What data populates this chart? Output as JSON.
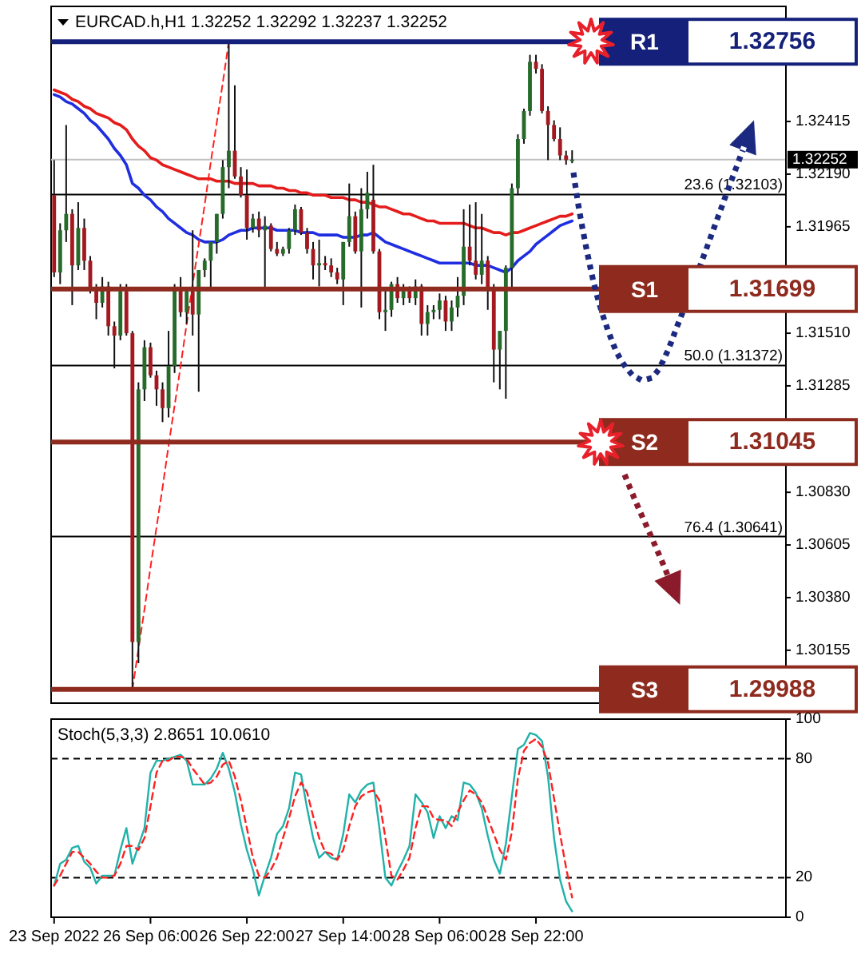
{
  "chart_data": [
    {
      "type": "candlestick",
      "title": "EURCAD.h,H1 1.32252 1.32292 1.32237 1.32252",
      "categories": [
        null,
        null,
        null,
        null,
        null,
        null,
        null,
        null,
        null,
        null,
        null,
        null,
        null,
        null,
        null,
        null,
        null,
        null,
        null,
        null,
        null,
        null,
        null,
        null,
        null,
        null,
        null,
        null,
        null,
        null,
        null,
        null,
        null,
        null,
        null,
        null,
        null,
        null,
        null,
        null,
        null,
        null,
        null,
        null,
        null,
        null,
        null,
        null,
        null,
        null,
        null,
        null,
        null,
        null,
        null,
        null,
        null,
        null,
        null,
        null,
        null,
        null,
        null,
        null,
        null,
        null,
        null,
        null,
        null,
        null,
        null,
        null,
        null,
        null,
        null,
        null,
        null,
        null,
        null,
        null,
        null,
        null,
        null,
        null,
        null,
        null,
        null,
        null,
        null,
        null,
        null,
        null,
        null,
        null,
        null,
        null,
        null,
        null,
        null,
        null,
        null,
        null,
        null,
        null,
        null,
        null,
        null,
        null,
        null,
        null,
        null,
        null,
        null,
        null,
        null,
        null,
        null,
        null,
        null,
        null,
        null,
        null
      ],
      "ohlc": [
        [
          1.321,
          1.3225,
          1.3175,
          1.3177
        ],
        [
          1.3177,
          1.3198,
          1.3172,
          1.3195
        ],
        [
          1.3195,
          1.324,
          1.319,
          1.3202
        ],
        [
          1.3202,
          1.3204,
          1.3163,
          1.318
        ],
        [
          1.318,
          1.3207,
          1.3178,
          1.3196
        ],
        [
          1.3196,
          1.32,
          1.3178,
          1.3182
        ],
        [
          1.3182,
          1.3184,
          1.3168,
          1.317
        ],
        [
          1.317,
          1.3172,
          1.3157,
          1.3164
        ],
        [
          1.3164,
          1.3175,
          1.3162,
          1.3171
        ],
        [
          1.3171,
          1.3173,
          1.315,
          1.3154
        ],
        [
          1.3154,
          1.3156,
          1.3136,
          1.315
        ],
        [
          1.315,
          1.3172,
          1.3148,
          1.3169
        ],
        [
          1.3169,
          1.3172,
          1.315,
          1.3151
        ],
        [
          1.3151,
          1.3152,
          1.29988,
          1.3019
        ],
        [
          1.3019,
          1.313,
          1.301,
          1.3127
        ],
        [
          1.3127,
          1.3148,
          1.3122,
          1.3145
        ],
        [
          1.3145,
          1.3147,
          1.3132,
          1.3133
        ],
        [
          1.3133,
          1.3135,
          1.312,
          1.3127
        ],
        [
          1.3127,
          1.313,
          1.3113,
          1.3119
        ],
        [
          1.3119,
          1.3152,
          1.3115,
          1.3137
        ],
        [
          1.3137,
          1.3172,
          1.3134,
          1.317
        ],
        [
          1.317,
          1.3175,
          1.3158,
          1.316
        ],
        [
          1.316,
          1.317,
          1.3155,
          1.3169
        ],
        [
          1.3169,
          1.3195,
          1.315,
          1.3159
        ],
        [
          1.3159,
          1.3178,
          1.3126,
          1.3178
        ],
        [
          1.3178,
          1.3183,
          1.3175,
          1.3182
        ],
        [
          1.3182,
          1.319,
          1.317,
          1.319
        ],
        [
          1.319,
          1.3202,
          1.3185,
          1.3202
        ],
        [
          1.3202,
          1.3225,
          1.32,
          1.3222
        ],
        [
          1.3222,
          1.32756,
          1.3213,
          1.3229
        ],
        [
          1.3229,
          1.3257,
          1.3217,
          1.3218
        ],
        [
          1.3218,
          1.3222,
          1.3209,
          1.321
        ],
        [
          1.321,
          1.3221,
          1.3191,
          1.3196
        ],
        [
          1.3196,
          1.3202,
          1.3194,
          1.32
        ],
        [
          1.32,
          1.3203,
          1.3192,
          1.3195
        ],
        [
          1.3195,
          1.3201,
          1.317,
          1.3197
        ],
        [
          1.3197,
          1.3198,
          1.3186,
          1.3187
        ],
        [
          1.3187,
          1.319,
          1.3184,
          1.3185
        ],
        [
          1.3185,
          1.3188,
          1.3184,
          1.3187
        ],
        [
          1.3187,
          1.3196,
          1.3185,
          1.3195
        ],
        [
          1.3195,
          1.3206,
          1.3193,
          1.3204
        ],
        [
          1.3204,
          1.3205,
          1.3193,
          1.3194
        ],
        [
          1.3194,
          1.3196,
          1.3185,
          1.3187
        ],
        [
          1.3187,
          1.319,
          1.3174,
          1.318
        ],
        [
          1.318,
          1.3191,
          1.3171,
          1.3181
        ],
        [
          1.3181,
          1.3184,
          1.3178,
          1.318
        ],
        [
          1.318,
          1.3183,
          1.3175,
          1.3177
        ],
        [
          1.3177,
          1.3179,
          1.3172,
          1.3174
        ],
        [
          1.3174,
          1.319,
          1.3163,
          1.319
        ],
        [
          1.319,
          1.3215,
          1.3188,
          1.3201
        ],
        [
          1.3201,
          1.3203,
          1.3185,
          1.3186
        ],
        [
          1.3186,
          1.3213,
          1.3162,
          1.3204
        ],
        [
          1.3204,
          1.322,
          1.32,
          1.3211
        ],
        [
          1.3208,
          1.3223,
          1.3185,
          1.3186
        ],
        [
          1.3186,
          1.3187,
          1.3157,
          1.316
        ],
        [
          1.316,
          1.317,
          1.3152,
          1.3161
        ],
        [
          1.3161,
          1.3173,
          1.3158,
          1.3172
        ],
        [
          1.3172,
          1.3175,
          1.3164,
          1.3166
        ],
        [
          1.3166,
          1.3172,
          1.3163,
          1.3169
        ],
        [
          1.3169,
          1.3171,
          1.3164,
          1.3166
        ],
        [
          1.3166,
          1.3174,
          1.3163,
          1.3171
        ],
        [
          1.3171,
          1.3172,
          1.315,
          1.3155
        ],
        [
          1.3155,
          1.3163,
          1.315,
          1.316
        ],
        [
          1.316,
          1.3163,
          1.3157,
          1.3161
        ],
        [
          1.3161,
          1.3168,
          1.3157,
          1.3165
        ],
        [
          1.3165,
          1.3167,
          1.3152,
          1.3156
        ],
        [
          1.3156,
          1.3165,
          1.3152,
          1.3162
        ],
        [
          1.3162,
          1.3175,
          1.3158,
          1.3167
        ],
        [
          1.3167,
          1.3204,
          1.3163,
          1.3188
        ],
        [
          1.3188,
          1.3206,
          1.318,
          1.3182
        ],
        [
          1.3182,
          1.3207,
          1.3174,
          1.3176
        ],
        [
          1.3176,
          1.3202,
          1.3172,
          1.3182
        ],
        [
          1.3182,
          1.3184,
          1.3161,
          1.317
        ],
        [
          1.317,
          1.3172,
          1.313,
          1.3144
        ],
        [
          1.3144,
          1.3152,
          1.3127,
          1.3152
        ],
        [
          1.3152,
          1.318,
          1.3123,
          1.3179
        ],
        [
          1.3179,
          1.3215,
          1.317,
          1.3213
        ],
        [
          1.3213,
          1.3236,
          1.321,
          1.3234
        ],
        [
          1.3234,
          1.3247,
          1.3232,
          1.3246
        ],
        [
          1.3246,
          1.327,
          1.3244,
          1.3267
        ],
        [
          1.3267,
          1.327,
          1.3262,
          1.3264
        ],
        [
          1.3264,
          1.3266,
          1.3245,
          1.3246
        ],
        [
          1.3246,
          1.3248,
          1.3225,
          1.324
        ],
        [
          1.324,
          1.3242,
          1.3233,
          1.3234
        ],
        [
          1.3234,
          1.3239,
          1.3225,
          1.3227
        ],
        [
          1.3227,
          1.3229,
          1.3223,
          1.3225
        ],
        [
          1.32252,
          1.32292,
          1.32237,
          1.32252
        ],
        null,
        null,
        null,
        null,
        null,
        null,
        null,
        null,
        null,
        null,
        null,
        null,
        null,
        null,
        null,
        null,
        null,
        null,
        null,
        null,
        null,
        null,
        null,
        null,
        null,
        null,
        null,
        null,
        null,
        null,
        null,
        null,
        null,
        null,
        null
      ],
      "colors": [
        "#a3191f",
        "#266b2a",
        "#266b2a",
        "#a3191f",
        "#266b2a",
        "#a3191f",
        "#a3191f",
        "#a3191f",
        "#266b2a",
        "#a3191f",
        "#a3191f",
        "#266b2a",
        "#a3191f",
        "#a3191f",
        "#266b2a",
        "#266b2a",
        "#a3191f",
        "#a3191f",
        "#a3191f",
        "#266b2a",
        "#266b2a",
        "#a3191f",
        "#266b2a",
        "#a3191f",
        "#266b2a",
        "#266b2a",
        "#266b2a",
        "#266b2a",
        "#266b2a",
        "#266b2a",
        "#a3191f",
        "#a3191f",
        "#a3191f",
        "#266b2a",
        "#a3191f",
        "#266b2a",
        "#a3191f",
        "#a3191f",
        "#266b2a",
        "#266b2a",
        "#266b2a",
        "#a3191f",
        "#a3191f",
        "#a3191f",
        "#266b2a",
        "#a3191f",
        "#a3191f",
        "#a3191f",
        "#266b2a",
        "#266b2a",
        "#a3191f",
        "#266b2a",
        "#266b2a",
        "#a3191f",
        "#a3191f",
        "#266b2a",
        "#266b2a",
        "#a3191f",
        "#266b2a",
        "#a3191f",
        "#266b2a",
        "#a3191f",
        "#266b2a",
        "#266b2a",
        "#266b2a",
        "#a3191f",
        "#266b2a",
        "#266b2a",
        "#266b2a",
        "#a3191f",
        "#a3191f",
        "#266b2a",
        "#a3191f",
        "#a3191f",
        "#266b2a",
        "#266b2a",
        "#266b2a",
        "#266b2a",
        "#266b2a",
        "#266b2a",
        "#a3191f",
        "#a3191f",
        "#a3191f",
        "#a3191f",
        "#a3191f",
        "#a3191f",
        "#266b2a",
        null,
        null,
        null,
        null,
        null,
        null,
        null,
        null,
        null,
        null,
        null,
        null,
        null,
        null,
        null,
        null,
        null,
        null,
        null,
        null,
        null,
        null,
        null,
        null,
        null,
        null,
        null,
        null,
        null,
        null,
        null,
        null,
        null,
        null,
        null
      ],
      "series": [
        {
          "type": "line",
          "color": "#e51c1c",
          "values": [
            1.3255,
            1.3254,
            1.3253,
            1.3251,
            1.325,
            1.3248,
            1.3247,
            1.3245,
            1.3244,
            1.3243,
            1.3241,
            1.324,
            1.3238,
            1.3234,
            1.3231,
            1.3229,
            1.3226,
            1.3225,
            1.3223,
            1.3222,
            1.3221,
            1.322,
            1.3219,
            1.3218,
            1.3217,
            1.3217,
            1.3217,
            1.3216,
            1.3216,
            1.3216,
            1.3215,
            1.3215,
            1.3215,
            1.3215,
            1.3214,
            1.3214,
            1.3214,
            1.3213,
            1.3213,
            1.3212,
            1.3212,
            1.3211,
            1.3211,
            1.321,
            1.321,
            1.321,
            1.3209,
            1.3209,
            1.3209,
            1.3208,
            1.3208,
            1.3207,
            1.3207,
            1.3206,
            1.3205,
            1.3205,
            1.3204,
            1.3203,
            1.3202,
            1.3202,
            1.3201,
            1.32,
            1.3199,
            1.3199,
            1.3198,
            1.3198,
            1.3198,
            1.3198,
            1.3198,
            1.3197,
            1.3196,
            1.3196,
            1.3195,
            1.3194,
            1.3194,
            1.3193,
            1.3194,
            1.3194,
            1.3195,
            1.3196,
            1.3197,
            1.3198,
            1.3199,
            1.32,
            1.3201,
            1.3201,
            1.3202,
            null,
            null,
            null,
            null,
            null,
            null,
            null,
            null,
            null,
            null,
            null,
            null,
            null,
            null,
            null,
            null,
            null,
            null,
            null,
            null,
            null,
            null,
            null,
            null,
            null,
            null,
            null,
            null,
            null,
            null,
            null,
            null,
            null,
            null,
            null
          ]
        },
        {
          "type": "line",
          "color": "#1f2ee0",
          "values": [
            1.3253,
            1.3252,
            1.325,
            1.3249,
            1.3247,
            1.3245,
            1.3242,
            1.324,
            1.3237,
            1.3234,
            1.323,
            1.3227,
            1.3223,
            1.3215,
            1.3213,
            1.321,
            1.3208,
            1.3205,
            1.3203,
            1.32,
            1.3198,
            1.3196,
            1.3194,
            1.3193,
            1.3191,
            1.319,
            1.319,
            1.319,
            1.3191,
            1.3193,
            1.3194,
            1.3195,
            1.3195,
            1.3196,
            1.3196,
            1.3196,
            1.3196,
            1.3195,
            1.3195,
            1.3195,
            1.3195,
            1.3194,
            1.3194,
            1.3194,
            1.3193,
            1.3193,
            1.3193,
            1.3193,
            1.3192,
            1.3192,
            1.3192,
            1.3193,
            1.3193,
            1.3194,
            1.3192,
            1.319,
            1.3189,
            1.3188,
            1.3187,
            1.3186,
            1.3185,
            1.3184,
            1.3183,
            1.3182,
            1.3181,
            1.3181,
            1.3181,
            1.3181,
            1.3181,
            1.3181,
            1.318,
            1.318,
            1.318,
            1.3179,
            1.3178,
            1.3177,
            1.3179,
            1.3182,
            1.3184,
            1.3186,
            1.3189,
            1.3191,
            1.3193,
            1.3195,
            1.3197,
            1.3198,
            1.3199,
            null,
            null,
            null,
            null,
            null,
            null,
            null,
            null,
            null,
            null,
            null,
            null,
            null,
            null,
            null,
            null,
            null,
            null,
            null,
            null,
            null,
            null,
            null,
            null,
            null,
            null,
            null,
            null,
            null,
            null,
            null,
            null,
            null,
            null,
            null
          ]
        },
        {
          "type": "line",
          "color": "#ff2020",
          "line_style": "dashed",
          "values": [
            null,
            null,
            null,
            null,
            null,
            null,
            null,
            null,
            null,
            null,
            null,
            null,
            null,
            1.29988,
            1.3016,
            1.3033,
            1.3051,
            1.3068,
            1.3085,
            1.3103,
            1.312,
            1.3137,
            1.3155,
            1.3172,
            1.3189,
            1.3206,
            1.3224,
            1.3241,
            1.3258,
            1.32756,
            null,
            null,
            null,
            null,
            null,
            null,
            null,
            null,
            null,
            null,
            null,
            null,
            null,
            null,
            null,
            null,
            null,
            null,
            null,
            null,
            null,
            null,
            null,
            null,
            null,
            null,
            null,
            null,
            null,
            null,
            null,
            null,
            null,
            null,
            null,
            null,
            null,
            null,
            null,
            null,
            null,
            null,
            null,
            null,
            null,
            null,
            null,
            null,
            null,
            null,
            null,
            null,
            null,
            null,
            null,
            null,
            null,
            null,
            null,
            null,
            null,
            null,
            null,
            null,
            null,
            null,
            null,
            null,
            null,
            null,
            null,
            null,
            null,
            null,
            null,
            null,
            null,
            null,
            null,
            null,
            null,
            null,
            null,
            null,
            null,
            null,
            null,
            null,
            null,
            null,
            null,
            null
          ]
        }
      ],
      "ylim": [
        1.29929,
        1.32907
      ],
      "yticks": [
        1.32415,
        1.32252,
        {
          "value": 1.3219,
          "label": "1.32190"
        },
        1.31965,
        {
          "value": 1.3151,
          "label": "1.31510"
        },
        1.31285,
        {
          "value": 1.3083,
          "label": "1.30830"
        },
        1.30605,
        {
          "value": 1.3038,
          "label": "1.30380"
        },
        1.30155
      ],
      "tick_labels": "y",
      "ref_lines": [
        {
          "axis": "y",
          "value": 1.32756,
          "label": "R1",
          "color": "#14207a"
        },
        {
          "axis": "y",
          "value": 1.32252,
          "color": "#c0c0c0"
        },
        {
          "axis": "y",
          "value": 1.32103,
          "color": "#000000"
        },
        {
          "axis": "y",
          "value": 1.31699,
          "label": "S1",
          "color": "#8e2a1e"
        },
        {
          "axis": "y",
          "value": 1.31372,
          "color": "#000000"
        },
        {
          "axis": "y",
          "value": 1.31045,
          "label": "S2",
          "color": "#8e2a1e"
        },
        {
          "axis": "y",
          "value": 1.30641,
          "color": "#000000"
        },
        {
          "axis": "y",
          "value": 1.29988,
          "label": "S3",
          "color": "#8e2a1e"
        }
      ],
      "annotations": [
        "1.32756",
        "1.31699",
        "1.31045",
        "1.29988",
        {
          "text": "23.6 (1.32103)",
          "y": 1.32103
        },
        {
          "text": "50.0 (1.31372)",
          "y": 1.31372
        },
        {
          "text": "76.4 (1.30641)",
          "y": 1.30641
        }
      ]
    },
    {
      "type": "line",
      "title": "Stoch(5,3,3) 2.8651 10.0610",
      "categories": [
        "23 Sep 2022",
        null,
        null,
        null,
        null,
        null,
        null,
        null,
        null,
        null,
        null,
        null,
        null,
        null,
        null,
        null,
        "26 Sep 06:00",
        null,
        null,
        null,
        null,
        null,
        null,
        null,
        null,
        null,
        null,
        null,
        null,
        null,
        null,
        null,
        "26 Sep 22:00",
        null,
        null,
        null,
        null,
        null,
        null,
        null,
        null,
        null,
        null,
        null,
        null,
        null,
        null,
        null,
        "27 Sep 14:00",
        null,
        null,
        null,
        null,
        null,
        null,
        null,
        null,
        null,
        null,
        null,
        null,
        null,
        null,
        null,
        "28 Sep 06:00",
        null,
        null,
        null,
        null,
        null,
        null,
        null,
        null,
        null,
        null,
        null,
        null,
        null,
        null,
        null,
        "28 Sep 22:00",
        null,
        null,
        null,
        null,
        null,
        null,
        null,
        null,
        null,
        null,
        null,
        null,
        null,
        null,
        null,
        null,
        null,
        null,
        null,
        null,
        null,
        null,
        null,
        null,
        null,
        null,
        null,
        null,
        null,
        null,
        null,
        null,
        null,
        null,
        null,
        null,
        null,
        null,
        null,
        null,
        null
      ],
      "series": [
        {
          "color": "#20b2aa",
          "values": [
            16,
            27,
            29,
            35,
            36,
            28,
            25,
            17,
            21,
            21,
            21,
            34,
            45,
            27,
            36,
            45,
            73,
            79,
            79,
            80,
            81,
            82,
            79,
            67,
            67,
            67,
            70,
            75,
            83,
            75,
            63,
            47,
            34,
            24,
            11,
            21,
            30,
            42,
            46,
            55,
            73,
            72,
            55,
            40,
            30,
            33,
            30,
            29,
            42,
            62,
            58,
            64,
            67,
            68,
            45,
            20,
            16,
            23,
            29,
            36,
            62,
            58,
            53,
            40,
            51,
            45,
            51,
            49,
            68,
            67,
            63,
            55,
            41,
            29,
            22,
            37,
            61,
            85,
            87,
            93,
            92,
            89,
            71,
            40,
            19,
            8,
            3,
            null,
            null,
            null,
            null,
            null,
            null,
            null,
            null,
            null,
            null,
            null,
            null,
            null,
            null,
            null,
            null,
            null,
            null,
            null,
            null,
            null,
            null,
            null,
            null,
            null,
            null,
            null,
            null,
            null,
            null,
            null,
            null,
            null,
            null,
            null
          ]
        },
        {
          "color": "#ff2020",
          "line_style": "dashed",
          "values": [
            16,
            21,
            27,
            33,
            33,
            30,
            27,
            23,
            20,
            20,
            21,
            27,
            36,
            36,
            34,
            40,
            56,
            73,
            79,
            79,
            81,
            81,
            80,
            75,
            71,
            67,
            68,
            71,
            77,
            79,
            71,
            59,
            45,
            30,
            21,
            20,
            24,
            30,
            40,
            50,
            61,
            68,
            63,
            51,
            40,
            33,
            32,
            29,
            34,
            46,
            56,
            61,
            63,
            64,
            59,
            40,
            21,
            19,
            24,
            30,
            45,
            56,
            56,
            50,
            49,
            49,
            46,
            53,
            59,
            64,
            62,
            58,
            50,
            42,
            34,
            29,
            43,
            70,
            84,
            88,
            90,
            86,
            78,
            60,
            42,
            25,
            10,
            null,
            null,
            null,
            null,
            null,
            null,
            null,
            null,
            null,
            null,
            null,
            null,
            null,
            null,
            null,
            null,
            null,
            null,
            null,
            null,
            null,
            null,
            null,
            null,
            null,
            null,
            null,
            null,
            null,
            null,
            null,
            null,
            null,
            null,
            null
          ]
        }
      ],
      "ylim": [
        0,
        100
      ],
      "yticks": [
        0,
        20,
        80,
        100
      ],
      "ref_lines": [
        {
          "axis": "y",
          "value": 80,
          "color": "#000000",
          "line_style": "dashed"
        },
        {
          "axis": "y",
          "value": 20,
          "color": "#000000",
          "line_style": "dashed"
        }
      ]
    }
  ]
}
